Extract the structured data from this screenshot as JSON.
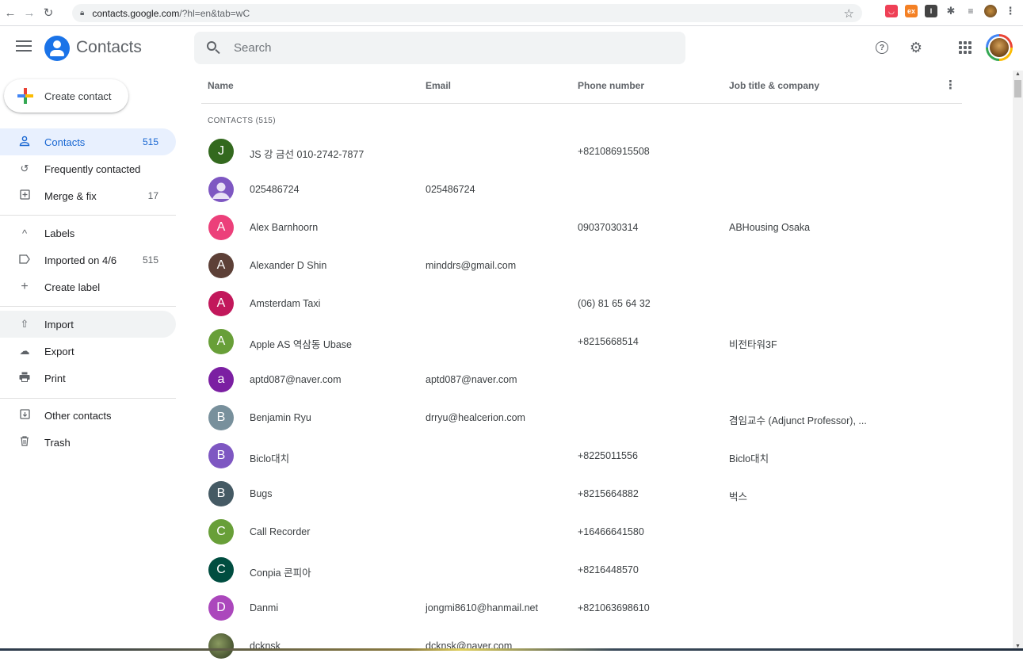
{
  "browser": {
    "url_host": "contacts.google.com",
    "url_path": "/?hl=en&tab=wC",
    "extensions": [
      {
        "icon": "pocket-icon",
        "color": "#ef4056",
        "glyph": "◡"
      },
      {
        "icon": "ext-orange-icon",
        "color": "#f48024",
        "glyph": "ex"
      },
      {
        "icon": "ext-dark-icon",
        "color": "#444444",
        "glyph": "I"
      }
    ]
  },
  "header": {
    "app_title": "Contacts",
    "search_placeholder": "Search"
  },
  "sidebar": {
    "create_label": "Create contact",
    "items": [
      {
        "label": "Contacts",
        "count": "515",
        "icon": "person-icon"
      },
      {
        "label": "Frequently contacted",
        "count": "",
        "icon": "history-icon"
      },
      {
        "label": "Merge & fix",
        "count": "17",
        "icon": "merge-icon"
      },
      {
        "label": "Labels",
        "count": "",
        "icon": "chevron-up-icon"
      },
      {
        "label": "Imported on 4/6",
        "count": "515",
        "icon": "label-icon"
      },
      {
        "label": "Create label",
        "count": "",
        "icon": "plus-icon"
      },
      {
        "label": "Import",
        "count": "",
        "icon": "upload-icon"
      },
      {
        "label": "Export",
        "count": "",
        "icon": "cloud-download-icon"
      },
      {
        "label": "Print",
        "count": "",
        "icon": "print-icon"
      },
      {
        "label": "Other contacts",
        "count": "",
        "icon": "archive-icon"
      },
      {
        "label": "Trash",
        "count": "",
        "icon": "trash-icon"
      }
    ]
  },
  "table": {
    "headers": {
      "name": "Name",
      "email": "Email",
      "phone": "Phone number",
      "job": "Job title & company"
    },
    "section_label": "CONTACTS (515)",
    "rows": [
      {
        "initial": "J",
        "color": "#33691e",
        "name": "JS 강 금선 010-2742-7877",
        "email": "",
        "phone": "+821086915508",
        "job": ""
      },
      {
        "initial": "",
        "color": "#7e57c2",
        "name": "025486724",
        "email": "025486724",
        "phone": "",
        "job": ""
      },
      {
        "initial": "A",
        "color": "#ec407a",
        "name": "Alex Barnhoorn",
        "email": "",
        "phone": "09037030314",
        "job": "ABHousing Osaka"
      },
      {
        "initial": "A",
        "color": "#5d4037",
        "name": "Alexander D Shin",
        "email": "minddrs@gmail.com",
        "phone": "",
        "job": ""
      },
      {
        "initial": "A",
        "color": "#c2185b",
        "name": "Amsterdam Taxi",
        "email": "",
        "phone": "(06) 81 65 64 32",
        "job": ""
      },
      {
        "initial": "A",
        "color": "#689f38",
        "name": "Apple AS 역삼동 Ubase",
        "email": "",
        "phone": "+8215668514",
        "job": "비전타워3F"
      },
      {
        "initial": "a",
        "color": "#7b1fa2",
        "name": "aptd087@naver.com",
        "email": "aptd087@naver.com",
        "phone": "",
        "job": ""
      },
      {
        "initial": "B",
        "color": "#78909c",
        "name": "Benjamin Ryu",
        "email": "drryu@healcerion.com",
        "phone": "",
        "job": "겸임교수 (Adjunct Professor), ..."
      },
      {
        "initial": "B",
        "color": "#7e57c2",
        "name": "Biclo대치",
        "email": "",
        "phone": "+8225011556",
        "job": "Biclo대치"
      },
      {
        "initial": "B",
        "color": "#455a64",
        "name": "Bugs",
        "email": "",
        "phone": "+8215664882",
        "job": "벅스"
      },
      {
        "initial": "C",
        "color": "#689f38",
        "name": "Call Recorder",
        "email": "",
        "phone": "+16466641580",
        "job": ""
      },
      {
        "initial": "C",
        "color": "#004d40",
        "name": "Conpia 콘피아",
        "email": "",
        "phone": "+8216448570",
        "job": ""
      },
      {
        "initial": "D",
        "color": "#ab47bc",
        "name": "Danmi",
        "email": "jongmi8610@hanmail.net",
        "phone": "+821063698610",
        "job": ""
      },
      {
        "initial": "",
        "color": "#556b3a",
        "name": "dcknsk",
        "email": "dcknsk@naver.com",
        "phone": "",
        "job": ""
      }
    ]
  }
}
